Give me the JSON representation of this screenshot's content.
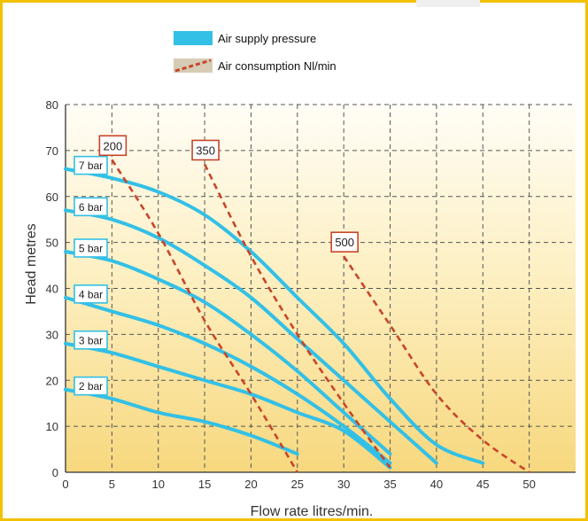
{
  "chart_data": {
    "type": "line",
    "xlabel": "Flow rate litres/min.",
    "ylabel": "Head metres",
    "xlim": [
      0,
      55
    ],
    "ylim": [
      0,
      80
    ],
    "xticks": [
      0,
      5,
      10,
      15,
      20,
      25,
      30,
      35,
      40,
      45,
      50
    ],
    "yticks": [
      0,
      10,
      20,
      30,
      40,
      50,
      60,
      70,
      80
    ],
    "grid": true,
    "legend": {
      "placement": "top",
      "entries": [
        {
          "label": "Air supply pressure",
          "color": "#33c0e6"
        },
        {
          "label": "Air consumption Nl/min",
          "color": "#c8452a"
        }
      ]
    },
    "series": [
      {
        "name": "7 bar",
        "kind": "air-supply-pressure",
        "color": "#33c0e6",
        "x": [
          0,
          5,
          10,
          15,
          20,
          25,
          30,
          35,
          40,
          45
        ],
        "y": [
          66,
          64,
          61,
          56,
          48,
          38,
          28,
          16,
          6,
          2
        ]
      },
      {
        "name": "6 bar",
        "kind": "air-supply-pressure",
        "color": "#33c0e6",
        "x": [
          0,
          5,
          10,
          15,
          20,
          25,
          30,
          35,
          40
        ],
        "y": [
          57,
          55,
          51,
          45,
          38,
          29,
          20,
          11,
          2
        ]
      },
      {
        "name": "5 bar",
        "kind": "air-supply-pressure",
        "color": "#33c0e6",
        "x": [
          0,
          5,
          10,
          15,
          20,
          25,
          30,
          35
        ],
        "y": [
          48,
          46,
          42,
          37,
          30,
          22,
          13,
          4
        ]
      },
      {
        "name": "4 bar",
        "kind": "air-supply-pressure",
        "color": "#33c0e6",
        "x": [
          0,
          5,
          10,
          15,
          20,
          25,
          30,
          35
        ],
        "y": [
          38,
          35,
          32,
          28,
          23,
          17,
          10,
          2
        ]
      },
      {
        "name": "3 bar",
        "kind": "air-supply-pressure",
        "color": "#33c0e6",
        "x": [
          0,
          5,
          10,
          15,
          20,
          25,
          30,
          35
        ],
        "y": [
          28,
          26,
          23,
          20,
          17,
          13,
          9,
          1
        ]
      },
      {
        "name": "2 bar",
        "kind": "air-supply-pressure",
        "color": "#33c0e6",
        "x": [
          0,
          5,
          10,
          15,
          20,
          25
        ],
        "y": [
          18,
          16,
          13,
          11,
          8,
          4
        ]
      },
      {
        "name": "200",
        "kind": "air-consumption",
        "color": "#c8452a",
        "x": [
          5,
          10,
          15,
          20,
          25
        ],
        "y": [
          68,
          52,
          33,
          17,
          0
        ]
      },
      {
        "name": "350",
        "kind": "air-consumption",
        "color": "#c8452a",
        "x": [
          15,
          20,
          25,
          30,
          35
        ],
        "y": [
          67,
          47,
          30,
          15,
          1
        ]
      },
      {
        "name": "500",
        "kind": "air-consumption",
        "color": "#c8452a",
        "x": [
          30,
          35,
          40,
          45,
          50
        ],
        "y": [
          47,
          32,
          17,
          7,
          0
        ]
      }
    ]
  }
}
